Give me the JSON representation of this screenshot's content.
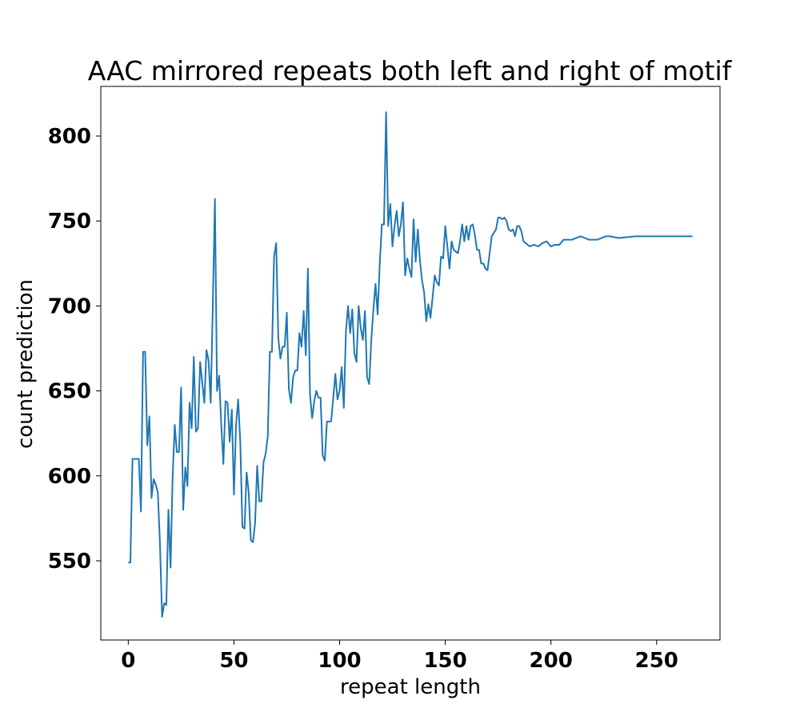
{
  "chart_data": {
    "type": "line",
    "title": "AAC mirrored repeats both left and right of motif",
    "xlabel": "repeat length",
    "ylabel": "count prediction",
    "color": "#1f77b4",
    "x": [
      0,
      1,
      2,
      3,
      5,
      6,
      7,
      8,
      9,
      10,
      11,
      12,
      13,
      14,
      15,
      16,
      17,
      18,
      19,
      20,
      21,
      22,
      23,
      24,
      25,
      26,
      27,
      28,
      29,
      30,
      31,
      32,
      33,
      34,
      35,
      36,
      37,
      38,
      39,
      40,
      41,
      42,
      43,
      44,
      45,
      46,
      47,
      48,
      49,
      50,
      51,
      52,
      53,
      54,
      55,
      56,
      57,
      58,
      59,
      60,
      61,
      62,
      63,
      64,
      65,
      66,
      67,
      68,
      69,
      70,
      71,
      72,
      73,
      74,
      75,
      76,
      77,
      78,
      79,
      80,
      81,
      82,
      83,
      84,
      85,
      86,
      87,
      88,
      89,
      90,
      91,
      92,
      93,
      94,
      95,
      96,
      97,
      98,
      99,
      100,
      101,
      102,
      103,
      104,
      105,
      106,
      107,
      108,
      109,
      110,
      111,
      112,
      113,
      114,
      115,
      116,
      117,
      118,
      119,
      120,
      121,
      122,
      123,
      124,
      125,
      126,
      127,
      128,
      129,
      130,
      131,
      132,
      133,
      134,
      135,
      136,
      137,
      138,
      139,
      140,
      141,
      142,
      143,
      144,
      145,
      146,
      147,
      148,
      149,
      150,
      151,
      152,
      153,
      154,
      155,
      156,
      157,
      158,
      159,
      160,
      161,
      162,
      163,
      164,
      165,
      166,
      167,
      168,
      169,
      170,
      171,
      172,
      173,
      174,
      175,
      176,
      177,
      178,
      179,
      180,
      181,
      182,
      183,
      184,
      185,
      186,
      187,
      188,
      189,
      190,
      192,
      194,
      196,
      198,
      200,
      202,
      204,
      206,
      208,
      210,
      212,
      214,
      216,
      218,
      222,
      226,
      228,
      232,
      240,
      267
    ],
    "values": [
      549,
      549,
      610,
      610,
      610,
      579,
      673,
      673,
      618,
      635,
      587,
      598,
      595,
      590,
      560,
      517,
      525,
      524,
      580,
      546,
      600,
      630,
      614,
      614,
      652,
      580,
      605,
      594,
      643,
      628,
      670,
      626,
      628,
      667,
      655,
      643,
      674,
      668,
      643,
      700,
      763,
      650,
      659,
      630,
      607,
      644,
      643,
      620,
      639,
      589,
      630,
      645,
      620,
      570,
      569,
      602,
      590,
      562,
      561,
      572,
      606,
      585,
      585,
      608,
      613,
      623,
      673,
      673,
      729,
      737,
      681,
      669,
      676,
      676,
      696,
      651,
      643,
      658,
      662,
      662,
      684,
      676,
      697,
      671,
      722,
      648,
      634,
      644,
      650,
      646,
      646,
      612,
      609,
      632,
      632,
      632,
      646,
      660,
      645,
      650,
      664,
      640,
      685,
      700,
      684,
      698,
      672,
      667,
      700,
      687,
      680,
      697,
      658,
      654,
      680,
      698,
      713,
      695,
      725,
      748,
      748,
      814,
      747,
      760,
      735,
      747,
      756,
      741,
      748,
      761,
      718,
      728,
      722,
      717,
      751,
      726,
      745,
      727,
      715,
      708,
      691,
      701,
      693,
      705,
      718,
      714,
      712,
      729,
      728,
      747,
      735,
      722,
      738,
      733,
      732,
      731,
      738,
      748,
      738,
      747,
      739,
      747,
      748,
      742,
      733,
      733,
      725,
      725,
      722,
      721,
      731,
      741,
      743,
      745,
      752,
      752,
      751,
      752,
      750,
      745,
      744,
      745,
      741,
      747,
      747,
      744,
      738,
      737,
      736,
      735,
      736,
      735,
      737,
      738,
      735,
      736,
      736,
      739,
      739,
      739,
      740,
      741,
      740,
      739,
      739,
      741,
      741,
      740,
      741,
      741
    ],
    "xlim": [
      -13,
      280
    ],
    "xticks": [
      0,
      50,
      100,
      150,
      200,
      250
    ],
    "ylim": [
      503.4,
      829.2
    ],
    "yticks": [
      550,
      600,
      650,
      700,
      750,
      800
    ]
  }
}
